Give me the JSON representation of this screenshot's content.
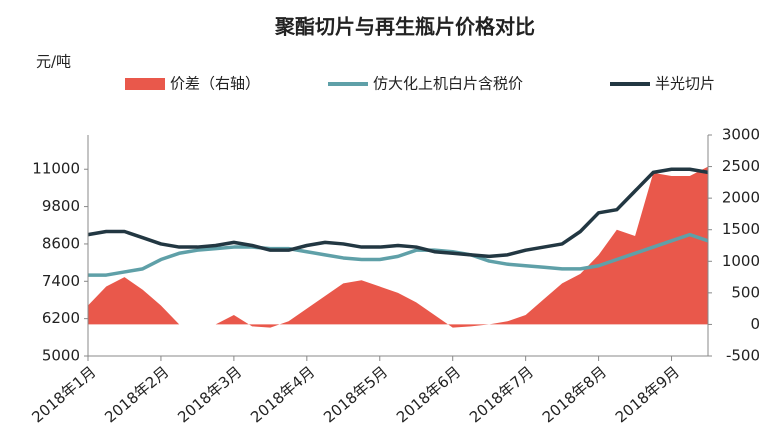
{
  "chart_data": {
    "type": "line",
    "title": "聚酯切片与再生瓶片价格对比",
    "ylabel": "元/吨",
    "categories": [
      "2018年1月",
      null,
      null,
      null,
      "2018年2月",
      null,
      null,
      null,
      "2018年3月",
      null,
      null,
      null,
      "2018年4月",
      null,
      null,
      null,
      "2018年5月",
      null,
      null,
      null,
      "2018年6月",
      null,
      null,
      null,
      "2018年7月",
      null,
      null,
      null,
      "2018年8月",
      null,
      null,
      null,
      "2018年9月",
      null,
      null
    ],
    "series": [
      {
        "name": "价差（右轴）",
        "type": "area",
        "axis": "y2",
        "color": "#e9584b",
        "values": [
          300,
          600,
          750,
          550,
          300,
          0,
          0,
          0,
          150,
          -30,
          -50,
          50,
          250,
          450,
          650,
          700,
          600,
          500,
          350,
          150,
          -50,
          -30,
          0,
          50,
          150,
          400,
          650,
          800,
          1100,
          1500,
          1400,
          2400,
          2350,
          2350,
          2500
        ]
      },
      {
        "name": "仿大化上机白片含税价",
        "type": "line",
        "color": "#5fa0a8",
        "values": [
          7600,
          7600,
          7700,
          7800,
          8100,
          8300,
          8400,
          8450,
          8500,
          8500,
          8450,
          8450,
          8350,
          8250,
          8150,
          8100,
          8100,
          8200,
          8400,
          8400,
          8350,
          8250,
          8050,
          7950,
          7900,
          7850,
          7800,
          7800,
          7900,
          8100,
          8300,
          8500,
          8700,
          8900,
          8700
        ]
      },
      {
        "name": "半光切片",
        "type": "line",
        "color": "#223742",
        "values": [
          8900,
          9000,
          9000,
          8800,
          8600,
          8500,
          8500,
          8550,
          8650,
          8550,
          8400,
          8400,
          8550,
          8650,
          8600,
          8500,
          8500,
          8550,
          8500,
          8350,
          8300,
          8250,
          8200,
          8250,
          8400,
          8500,
          8600,
          9000,
          9600,
          9700,
          10300,
          10900,
          11000,
          11000,
          10900
        ]
      }
    ],
    "ylim": [
      5000,
      12100
    ],
    "yticks": [
      5000,
      6200,
      7400,
      8600,
      9800,
      11000
    ],
    "y2lim": [
      -500,
      3000
    ],
    "y2ticks": [
      -500,
      0,
      500,
      1000,
      1500,
      2000,
      2500,
      3000
    ]
  }
}
